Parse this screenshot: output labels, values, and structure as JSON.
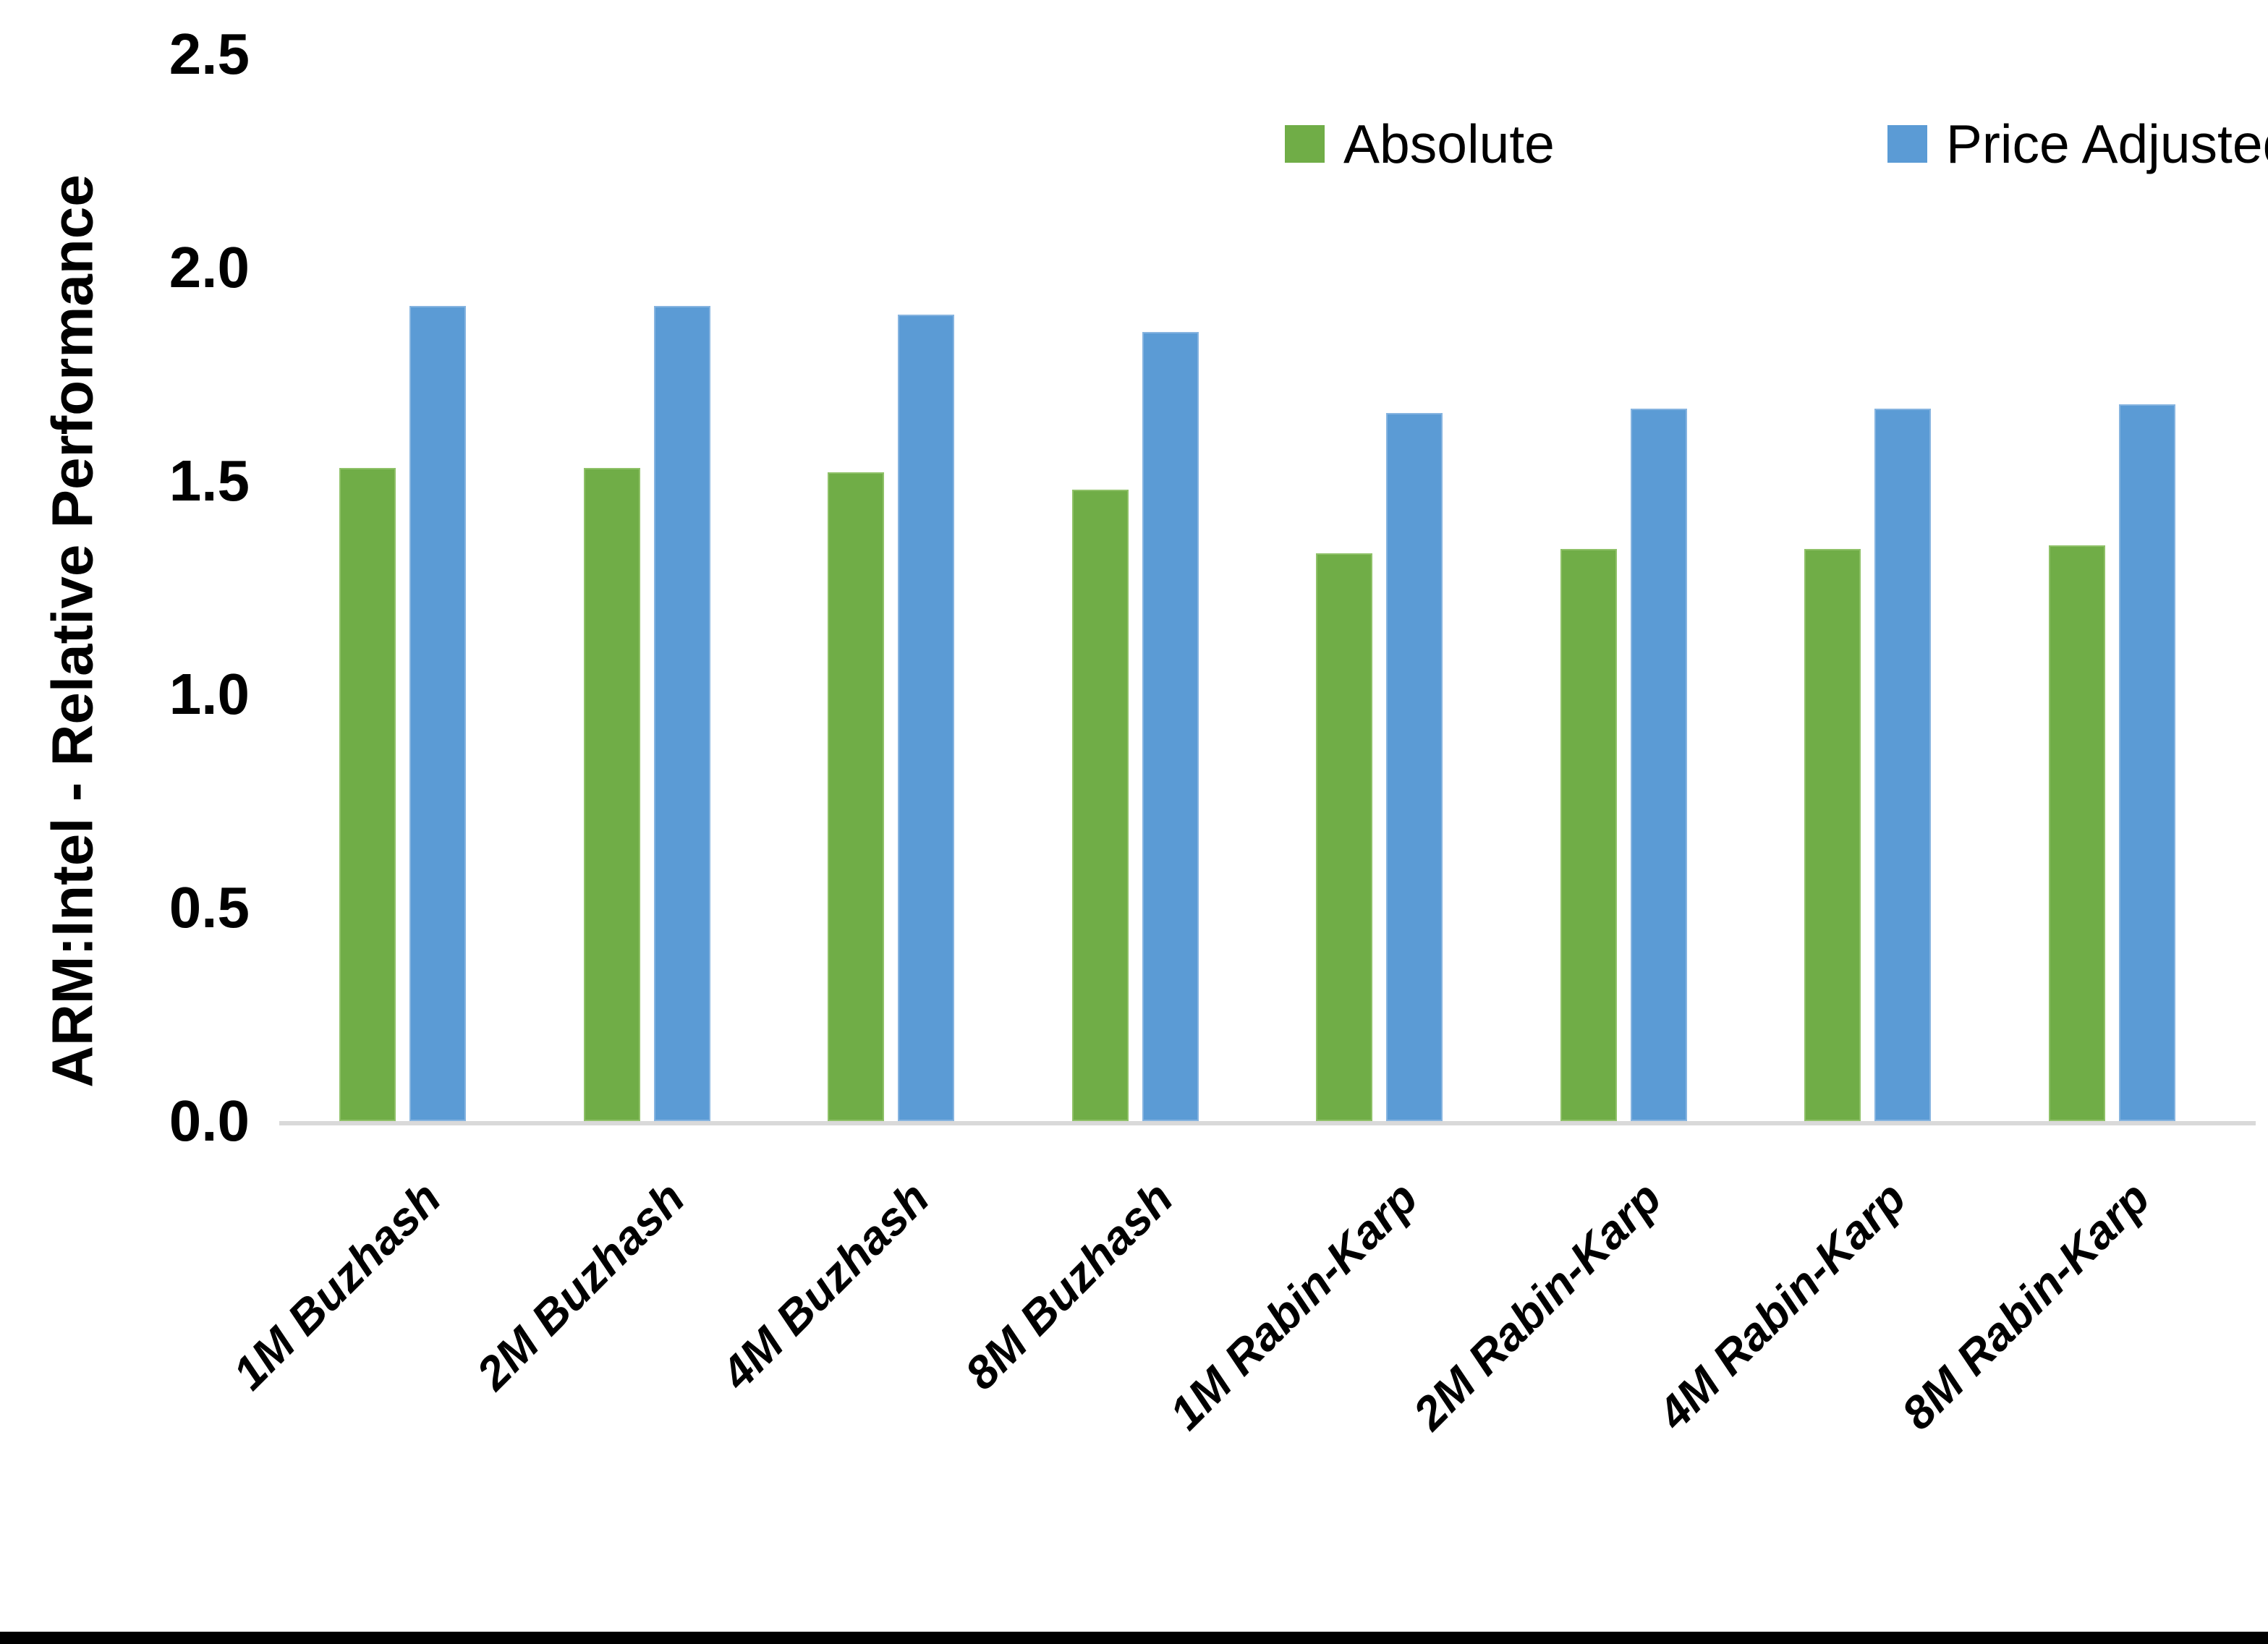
{
  "chart_data": {
    "type": "bar",
    "title": "",
    "ylabel": "ARM:Intel - Relative Performance",
    "xlabel": "",
    "ylim": [
      0,
      2.5
    ],
    "ytick_labels": [
      "0.0",
      "0.5",
      "1.0",
      "1.5",
      "2.0",
      "2.5"
    ],
    "grid": false,
    "legend_position": "top-right-inside",
    "categories": [
      "1M Buzhash",
      "2M Buzhash",
      "4M Buzhash",
      "8M Buzhash",
      "1M Rabin-Karp",
      "2M Rabin-Karp",
      "4M Rabin-Karp",
      "8M Rabin-Karp"
    ],
    "series": [
      {
        "name": "Absolute",
        "color": "#70AD47",
        "values": [
          1.53,
          1.53,
          1.52,
          1.48,
          1.33,
          1.34,
          1.34,
          1.35
        ]
      },
      {
        "name": "Price Adjusted",
        "color": "#5B9BD5",
        "values": [
          1.91,
          1.91,
          1.89,
          1.85,
          1.66,
          1.67,
          1.67,
          1.68
        ]
      }
    ],
    "axis_line_color": "#D9D9D9",
    "text_color": "#000000",
    "background_color": "#FFFFFF"
  }
}
